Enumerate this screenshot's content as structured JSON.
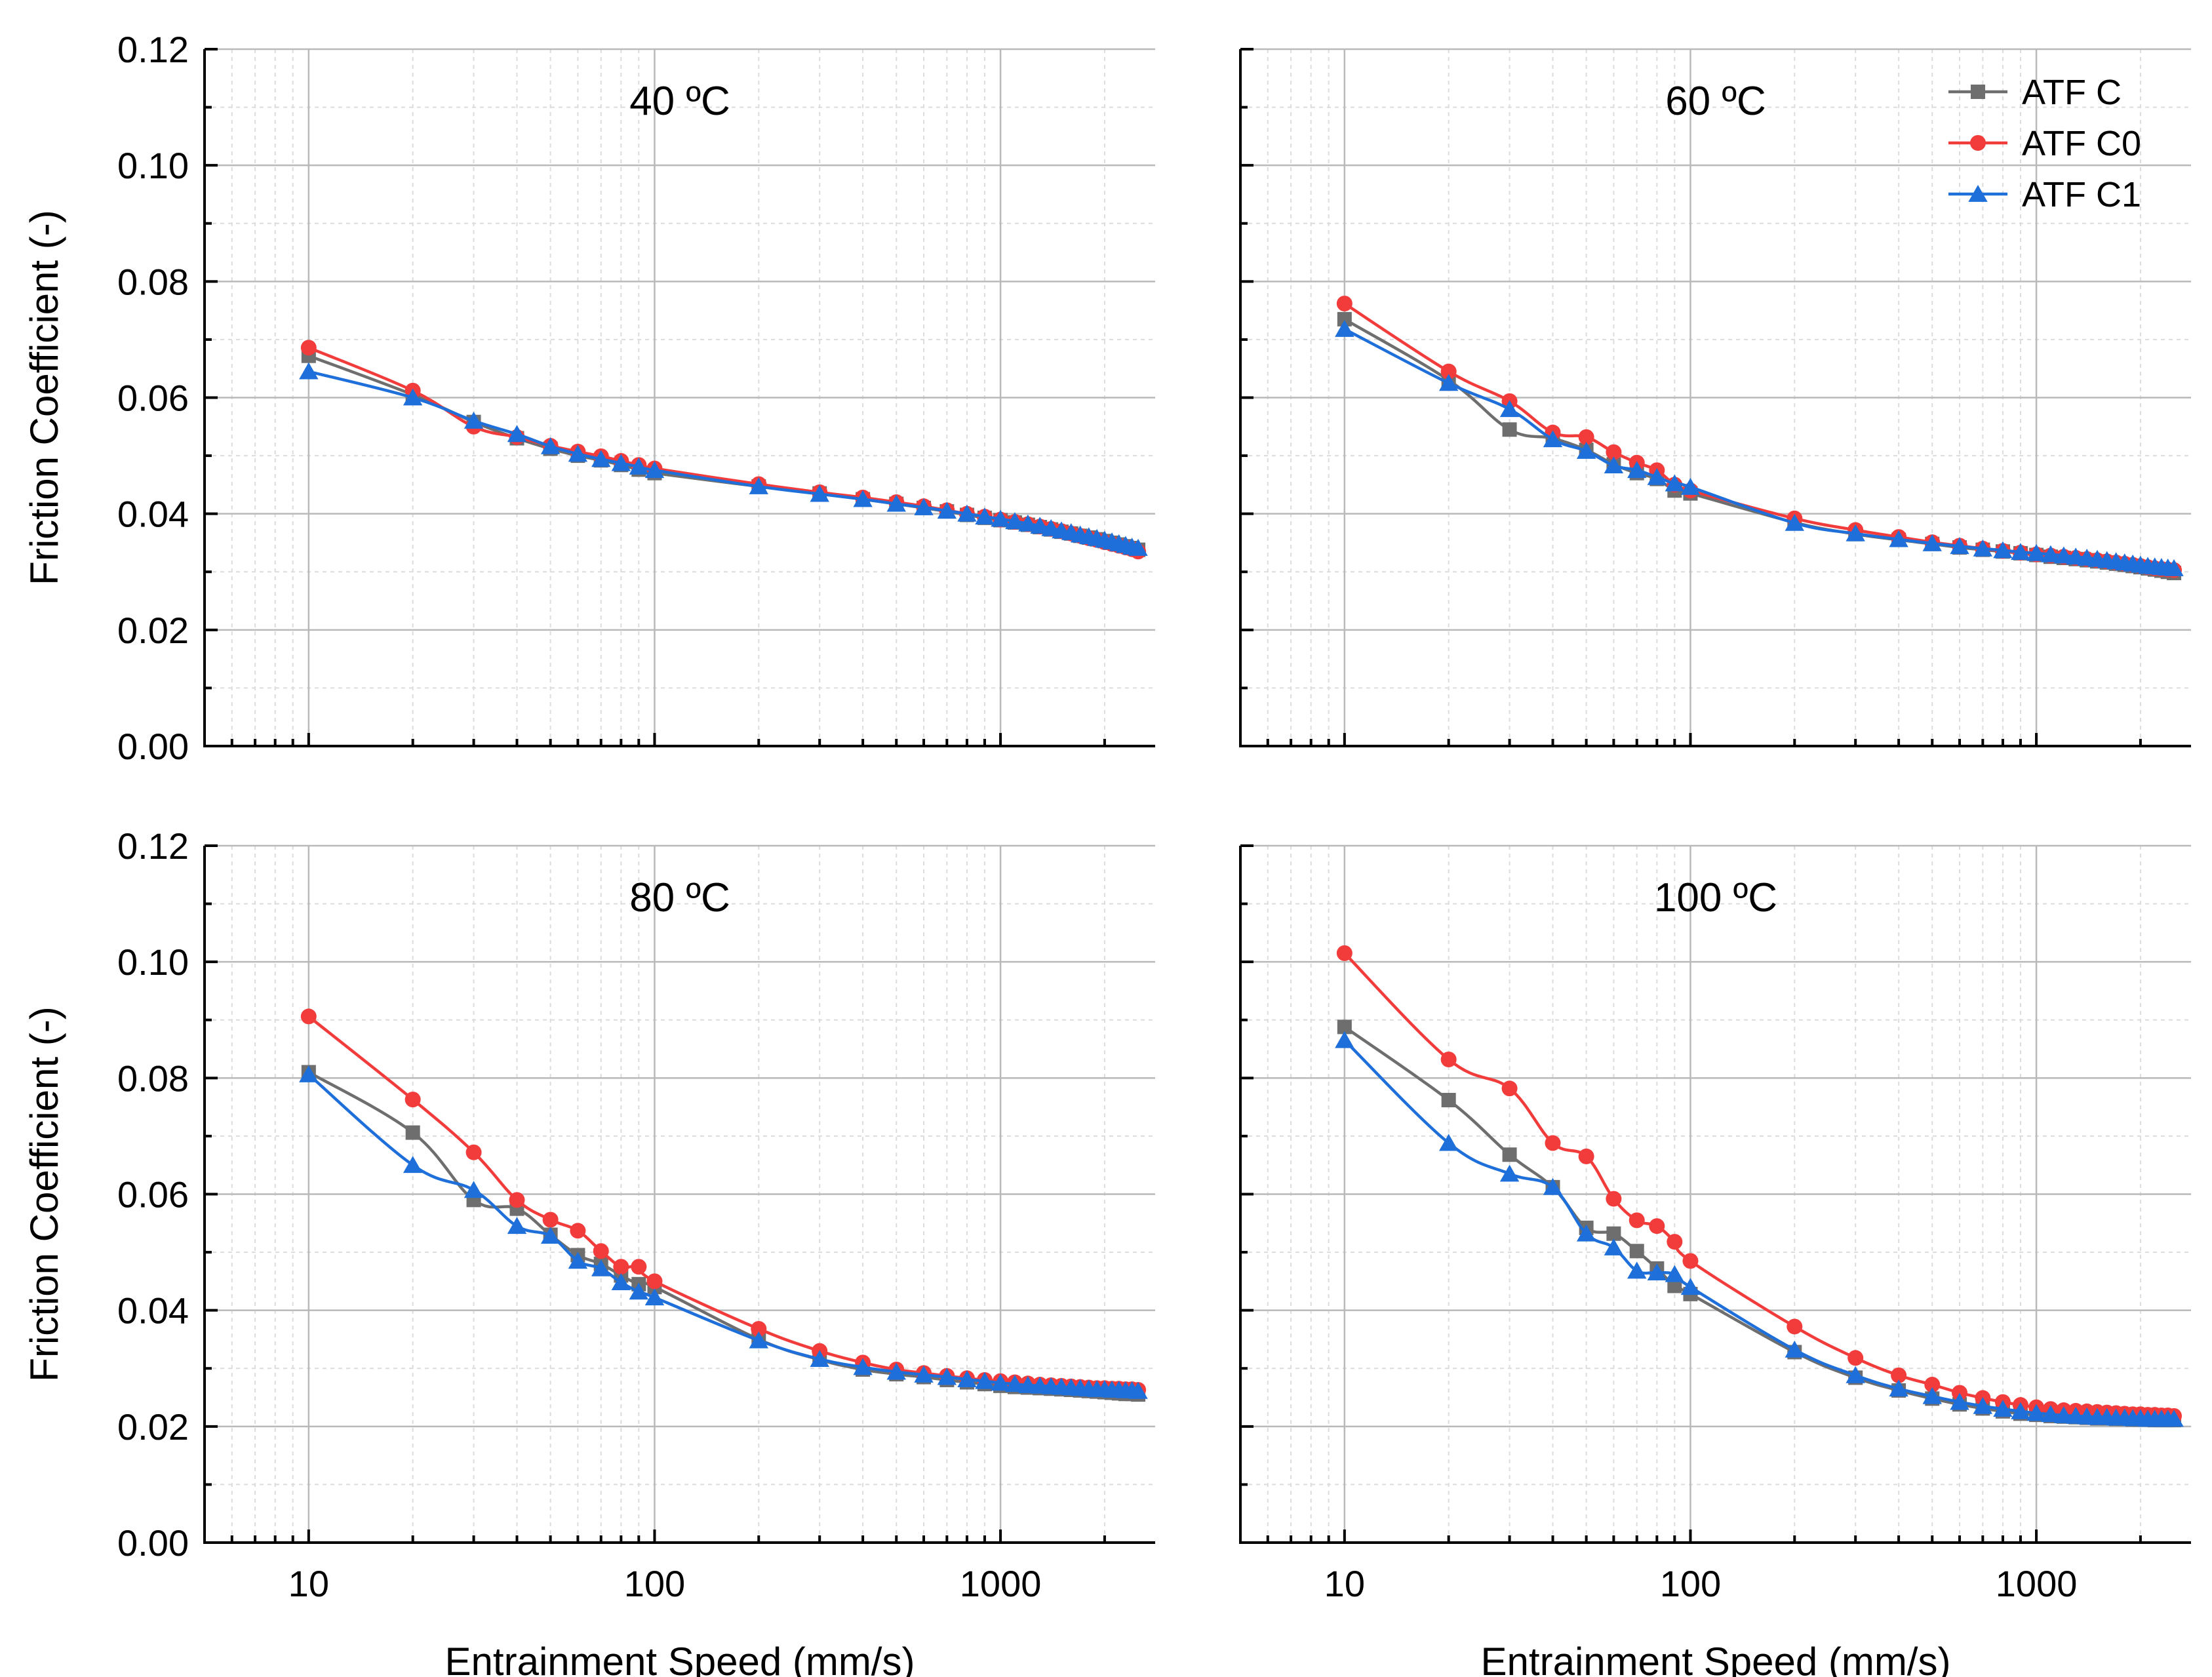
{
  "chart_data": {
    "type": "line",
    "xscale": "log",
    "xlabel": "Entrainment Speed (mm/s)",
    "ylabel": "Friction Coefficient (-)",
    "xlim": [
      5,
      2800
    ],
    "ylim": [
      0,
      0.12
    ],
    "xticks": [
      10,
      100,
      1000
    ],
    "xtick_labels": [
      "10",
      "100",
      "1000"
    ],
    "yticks": [
      0,
      0.02,
      0.04,
      0.06,
      0.08,
      0.1,
      0.12
    ],
    "ytick_labels": [
      "0.00",
      "0.02",
      "0.04",
      "0.06",
      "0.08",
      "0.10",
      "0.12"
    ],
    "grid": true,
    "legend_position": "top-right of 60 ºC panel",
    "legend": [
      {
        "name": "ATF C",
        "color": "#6e6e6e",
        "marker": "square"
      },
      {
        "name": "ATF C0",
        "color": "#f23c3c",
        "marker": "circle"
      },
      {
        "name": "ATF C1",
        "color": "#1e6fd9",
        "marker": "triangle"
      }
    ],
    "x": [
      10,
      20,
      30,
      40,
      50,
      60,
      70,
      80,
      90,
      100,
      200,
      300,
      400,
      500,
      600,
      700,
      800,
      900,
      1000,
      1100,
      1200,
      1300,
      1400,
      1500,
      1600,
      1700,
      1800,
      1900,
      2000,
      2100,
      2200,
      2300,
      2400,
      2500
    ],
    "panels": [
      {
        "title": "40 ºC",
        "series": [
          {
            "name": "ATF C",
            "values": [
              0.0672,
              0.0605,
              0.0558,
              0.053,
              0.0512,
              0.05,
              0.0492,
              0.0484,
              0.0476,
              0.047,
              0.0447,
              0.0435,
              0.0425,
              0.0417,
              0.041,
              0.0404,
              0.0398,
              0.0393,
              0.0389,
              0.0385,
              0.0381,
              0.0377,
              0.0373,
              0.0369,
              0.0366,
              0.0362,
              0.0359,
              0.0356,
              0.0353,
              0.035,
              0.0347,
              0.0344,
              0.0341,
              0.0338
            ]
          },
          {
            "name": "ATF C0",
            "values": [
              0.0686,
              0.0612,
              0.055,
              0.0532,
              0.0517,
              0.0507,
              0.0499,
              0.0491,
              0.0484,
              0.0478,
              0.0451,
              0.0437,
              0.0428,
              0.042,
              0.0413,
              0.0406,
              0.04,
              0.0395,
              0.039,
              0.0386,
              0.0382,
              0.0378,
              0.0374,
              0.037,
              0.0366,
              0.0362,
              0.0358,
              0.0355,
              0.0351,
              0.0348,
              0.0345,
              0.0342,
              0.0339,
              0.0335
            ]
          },
          {
            "name": "ATF C1",
            "values": [
              0.0645,
              0.06,
              0.056,
              0.0537,
              0.0516,
              0.0503,
              0.0494,
              0.0487,
              0.0481,
              0.0475,
              0.0447,
              0.0434,
              0.0425,
              0.0417,
              0.0411,
              0.0405,
              0.04,
              0.0395,
              0.0391,
              0.0387,
              0.0383,
              0.0379,
              0.0375,
              0.0371,
              0.0368,
              0.0364,
              0.0361,
              0.0358,
              0.0355,
              0.0352,
              0.0349,
              0.0346,
              0.0343,
              0.0341
            ]
          }
        ]
      },
      {
        "title": "60 ºC",
        "series": [
          {
            "name": "ATF C",
            "values": [
              0.0735,
              0.063,
              0.0545,
              0.053,
              0.051,
              0.0485,
              0.047,
              0.046,
              0.044,
              0.0435,
              0.0385,
              0.0365,
              0.0355,
              0.0348,
              0.0342,
              0.0338,
              0.0335,
              0.0332,
              0.0329,
              0.0326,
              0.0324,
              0.0322,
              0.032,
              0.0318,
              0.0316,
              0.0314,
              0.0312,
              0.031,
              0.0308,
              0.0306,
              0.0304,
              0.0302,
              0.03,
              0.0298
            ]
          },
          {
            "name": "ATF C0",
            "values": [
              0.0762,
              0.0645,
              0.0594,
              0.054,
              0.0532,
              0.0506,
              0.0488,
              0.0475,
              0.045,
              0.044,
              0.0392,
              0.0372,
              0.036,
              0.0351,
              0.0345,
              0.034,
              0.0336,
              0.0333,
              0.033,
              0.0328,
              0.0326,
              0.0324,
              0.0322,
              0.032,
              0.0318,
              0.0316,
              0.0314,
              0.0312,
              0.031,
              0.0308,
              0.0306,
              0.0305,
              0.0304,
              0.0303
            ]
          },
          {
            "name": "ATF C1",
            "values": [
              0.0718,
              0.0625,
              0.058,
              0.0528,
              0.0508,
              0.0483,
              0.0475,
              0.0463,
              0.0452,
              0.0446,
              0.0384,
              0.0366,
              0.0356,
              0.0349,
              0.0344,
              0.034,
              0.0337,
              0.0334,
              0.0332,
              0.033,
              0.0328,
              0.0326,
              0.0324,
              0.0322,
              0.032,
              0.0318,
              0.0316,
              0.0314,
              0.0312,
              0.031,
              0.0309,
              0.0308,
              0.0307,
              0.0306
            ]
          }
        ]
      },
      {
        "title": "80 ºC",
        "series": [
          {
            "name": "ATF C",
            "values": [
              0.081,
              0.0706,
              0.059,
              0.0575,
              0.053,
              0.0495,
              0.048,
              0.046,
              0.0445,
              0.044,
              0.035,
              0.0315,
              0.0298,
              0.029,
              0.0285,
              0.028,
              0.0276,
              0.0273,
              0.027,
              0.0268,
              0.0267,
              0.0266,
              0.0265,
              0.0264,
              0.0263,
              0.0262,
              0.0261,
              0.026,
              0.0259,
              0.0258,
              0.0257,
              0.0256,
              0.0256,
              0.0255
            ]
          },
          {
            "name": "ATF C0",
            "values": [
              0.0906,
              0.0763,
              0.0672,
              0.059,
              0.0556,
              0.0537,
              0.0502,
              0.0475,
              0.0475,
              0.045,
              0.0368,
              0.033,
              0.031,
              0.0298,
              0.0292,
              0.0287,
              0.0283,
              0.028,
              0.0278,
              0.0276,
              0.0274,
              0.0272,
              0.0271,
              0.027,
              0.0269,
              0.0268,
              0.0267,
              0.0266,
              0.0266,
              0.0265,
              0.0265,
              0.0264,
              0.0264,
              0.0263
            ]
          },
          {
            "name": "ATF C1",
            "values": [
              0.0806,
              0.065,
              0.0607,
              0.0545,
              0.0528,
              0.0485,
              0.0472,
              0.0448,
              0.0432,
              0.0422,
              0.0348,
              0.0316,
              0.0302,
              0.0294,
              0.0289,
              0.0285,
              0.0281,
              0.0278,
              0.0275,
              0.0273,
              0.0271,
              0.027,
              0.0269,
              0.0268,
              0.0267,
              0.0266,
              0.0265,
              0.0264,
              0.0264,
              0.0263,
              0.0263,
              0.0262,
              0.0262,
              0.0261
            ]
          }
        ]
      },
      {
        "title": "100 ºC",
        "series": [
          {
            "name": "ATF C",
            "values": [
              0.0888,
              0.0762,
              0.0668,
              0.0612,
              0.0542,
              0.0532,
              0.0502,
              0.0472,
              0.0442,
              0.0428,
              0.0328,
              0.0284,
              0.0262,
              0.0248,
              0.0238,
              0.0231,
              0.0226,
              0.0222,
              0.022,
              0.0218,
              0.0217,
              0.0216,
              0.0215,
              0.0214,
              0.0214,
              0.0213,
              0.0213,
              0.0212,
              0.0212,
              0.0212,
              0.0211,
              0.0211,
              0.0211,
              0.0211
            ]
          },
          {
            "name": "ATF C0",
            "values": [
              0.1015,
              0.0832,
              0.0782,
              0.0688,
              0.0665,
              0.0592,
              0.0555,
              0.0545,
              0.0518,
              0.0485,
              0.0372,
              0.0318,
              0.0288,
              0.0272,
              0.0258,
              0.0249,
              0.0242,
              0.0237,
              0.0233,
              0.023,
              0.0228,
              0.0227,
              0.0226,
              0.0225,
              0.0224,
              0.0223,
              0.0222,
              0.0221,
              0.0221,
              0.022,
              0.022,
              0.0219,
              0.0219,
              0.0218
            ]
          },
          {
            "name": "ATF C1",
            "values": [
              0.0865,
              0.0688,
              0.0635,
              0.0612,
              0.0532,
              0.0508,
              0.0468,
              0.0465,
              0.0462,
              0.044,
              0.0332,
              0.0288,
              0.0265,
              0.0252,
              0.0242,
              0.0235,
              0.023,
              0.0226,
              0.0223,
              0.0221,
              0.0219,
              0.0218,
              0.0217,
              0.0216,
              0.0216,
              0.0215,
              0.0215,
              0.0214,
              0.0214,
              0.0213,
              0.0213,
              0.0213,
              0.0213,
              0.0213
            ]
          }
        ]
      }
    ]
  }
}
